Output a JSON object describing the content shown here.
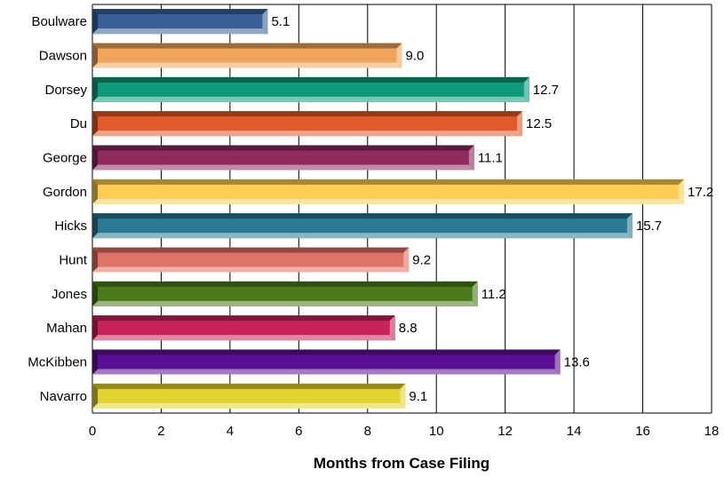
{
  "chart_data": {
    "type": "bar",
    "orientation": "horizontal",
    "categories": [
      "Boulware",
      "Dawson",
      "Dorsey",
      "Du",
      "George",
      "Gordon",
      "Hicks",
      "Hunt",
      "Jones",
      "Mahan",
      "McKibben",
      "Navarro"
    ],
    "values": [
      5.1,
      9.0,
      12.7,
      12.5,
      11.1,
      17.2,
      15.7,
      9.2,
      11.2,
      8.8,
      13.6,
      9.1
    ],
    "value_labels": [
      "5.1",
      "9.0",
      "12.7",
      "12.5",
      "11.1",
      "17.2",
      "15.7",
      "9.2",
      "11.2",
      "8.8",
      "13.6",
      "9.1"
    ],
    "colors": [
      "#3a5f96",
      "#f0a55a",
      "#0e9a7a",
      "#e25a2a",
      "#8e2a5e",
      "#ffcc55",
      "#2a7a93",
      "#e07268",
      "#4a7a1a",
      "#c8245a",
      "#5a1095",
      "#e2d232"
    ],
    "xlabel": "Months from Case Filing",
    "ylabel": "",
    "xlim": [
      0,
      18
    ],
    "xticks": [
      "0",
      "2",
      "4",
      "6",
      "8",
      "10",
      "12",
      "14",
      "16",
      "18"
    ],
    "grid": true
  }
}
